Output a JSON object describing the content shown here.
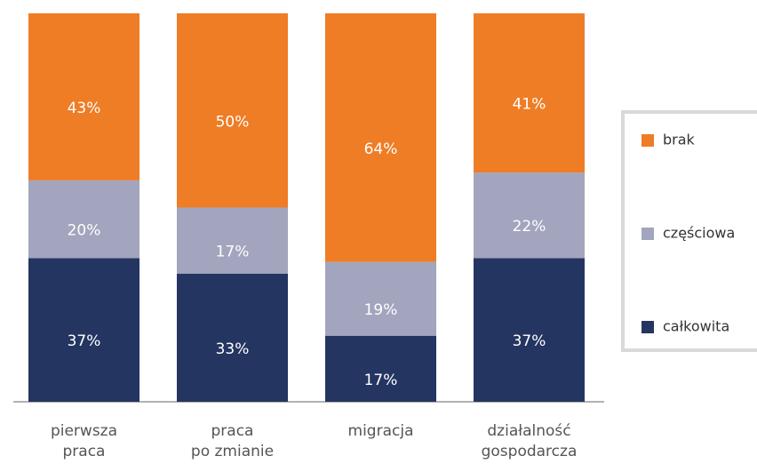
{
  "chart_data": {
    "type": "stacked-bar",
    "categories": [
      "pierwsza\npraca",
      "praca\npo zmianie",
      "migracja",
      "działalność\ngospodarcza"
    ],
    "series": [
      {
        "name": "całkowita",
        "color": "#253561",
        "values": [
          37,
          33,
          17,
          37
        ],
        "value_labels": [
          "37%",
          "33%",
          "17%",
          "37%"
        ]
      },
      {
        "name": "częściowa",
        "color": "#a2a5bd",
        "values": [
          20,
          17,
          19,
          22
        ],
        "value_labels": [
          "20%",
          "17%",
          "19%",
          "22%"
        ]
      },
      {
        "name": "brak",
        "color": "#ee7d26",
        "values": [
          43,
          50,
          64,
          41
        ],
        "value_labels": [
          "43%",
          "50%",
          "64%",
          "41%"
        ]
      }
    ],
    "ylim": [
      0,
      100
    ],
    "legend": "right"
  }
}
